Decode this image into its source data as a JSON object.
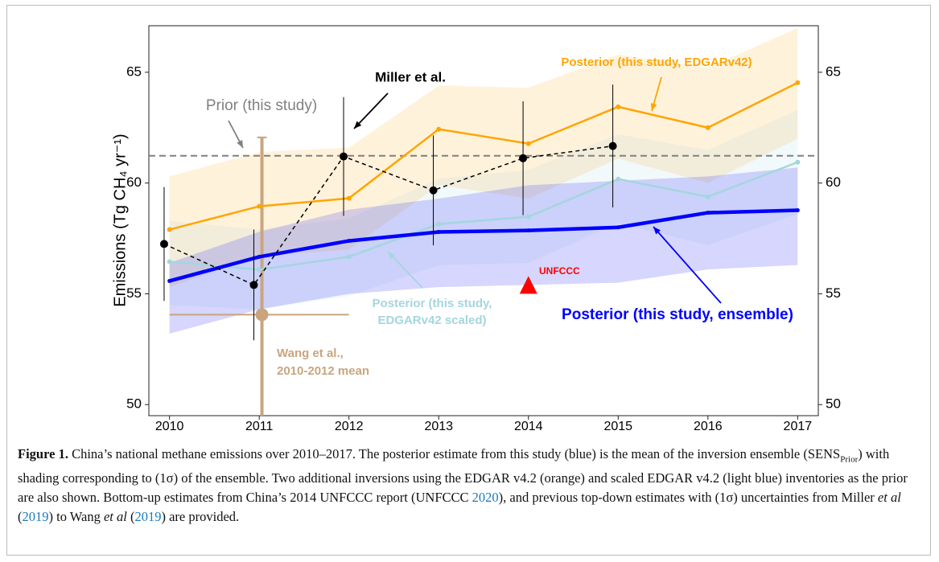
{
  "chart_data": {
    "type": "line",
    "ylabel": "Emissions (Tg CH₄ yr⁻¹)",
    "xlim": [
      2009.77,
      2017.23
    ],
    "ylim": [
      49.5,
      67.1
    ],
    "y2lim": [
      49.5,
      67.1
    ],
    "xticks": [
      2010,
      2011,
      2012,
      2013,
      2014,
      2015,
      2016,
      2017
    ],
    "yticks": [
      50,
      55,
      60,
      65
    ],
    "y2ticks": [
      50,
      55,
      60,
      65
    ],
    "x": [
      2010,
      2011,
      2012,
      2013,
      2014,
      2015,
      2016,
      2017
    ],
    "series": [
      {
        "label": "Posterior (this study, EDGARv42)",
        "color": "#ffa500",
        "values": [
          57.9,
          58.95,
          59.31,
          62.43,
          61.78,
          63.44,
          62.5,
          64.53
        ],
        "lower": [
          55.3,
          56.7,
          57.0,
          59.9,
          59.3,
          61.1,
          60.0,
          62.0
        ],
        "upper": [
          60.3,
          61.4,
          61.6,
          64.4,
          64.3,
          65.8,
          65.2,
          67.0
        ]
      },
      {
        "label": [
          "Posterior (this study,",
          "EDGARv42 scaled)"
        ],
        "color": "#a3d6de",
        "values": [
          56.45,
          56.09,
          56.67,
          58.15,
          58.48,
          60.18,
          59.38,
          60.94
        ],
        "lower": [
          54.5,
          54.3,
          54.9,
          56.3,
          56.4,
          58.2,
          57.2,
          58.6
        ],
        "upper": [
          58.3,
          57.9,
          58.4,
          60.2,
          60.6,
          62.2,
          61.5,
          63.3
        ]
      },
      {
        "label": "Posterior (this study, ensemble)",
        "color": "#0000ff",
        "values": [
          55.58,
          56.67,
          57.39,
          57.79,
          57.86,
          58.0,
          58.66,
          58.77
        ],
        "lower": [
          53.2,
          54.3,
          55.0,
          55.3,
          55.4,
          55.5,
          56.1,
          56.3
        ],
        "upper": [
          56.4,
          57.8,
          58.8,
          59.3,
          59.9,
          60.1,
          60.3,
          60.7
        ]
      }
    ],
    "prior": {
      "label": "Prior (this study)",
      "color": "#808080",
      "value": 61.23
    },
    "miller": {
      "label": "Miller et al.",
      "color": "#000000",
      "x": [
        2009.94,
        2010.94,
        2011.94,
        2012.94,
        2013.94,
        2014.94
      ],
      "values": [
        57.25,
        55.4,
        61.2,
        59.67,
        61.12,
        61.67
      ],
      "errors": [
        2.57,
        2.5,
        2.68,
        2.48,
        2.57,
        2.77
      ]
    },
    "unfccc": {
      "label": "UNFCCC",
      "color": "#ff0000",
      "x": 2014,
      "value": 55.33
    },
    "wang": {
      "label": [
        "Wang et al.,",
        "2010-2012 mean"
      ],
      "color": "#c9a57e",
      "x": 2011.03,
      "value": 54.06,
      "error": 8,
      "x_range": [
        2010,
        2012
      ]
    }
  },
  "caption": {
    "segments": [
      "Figure 1.",
      " China’s national methane emissions over 2010–2017. The posterior estimate from this study (blue) is the mean of the inversion ensemble (SENS",
      "Prior",
      ") with shading corresponding to (1σ) of the ensemble. Two additional inversions using the EDGAR v4.2 (orange) and scaled EDGAR v4.2 (light blue) inventories as the prior are also shown. Bottom-up estimates from China’s 2014 UNFCCC report (UNFCCC ",
      "2020",
      "), and previous top-down estimates with (1σ) uncertainties from Miller ",
      "et al",
      " (",
      "2019",
      ") to Wang ",
      "et al",
      " (",
      "2019",
      ") are provided."
    ]
  }
}
